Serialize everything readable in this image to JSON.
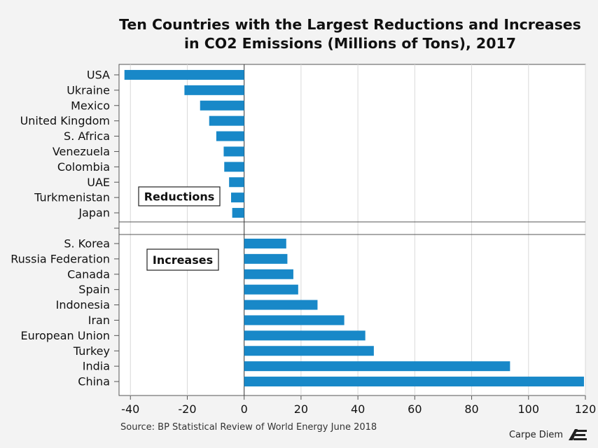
{
  "title_lines": [
    "Ten Countries with the Largest Reductions and Increases",
    "in CO2 Emissions (Millions of Tons), 2017"
  ],
  "source": "Source: BP Statistical Review of World Energy June 2018",
  "credit": "Carpe Diem",
  "logo_icon": "aei-logo-icon",
  "colors": {
    "bar": "#1888c8",
    "background": "#f3f3f3",
    "plot": "#ffffff",
    "grid": "#d9d9d9"
  },
  "chart_data": {
    "type": "bar",
    "orientation": "horizontal",
    "title": "Ten Countries with the Largest Reductions and Increases in CO2 Emissions (Millions of Tons), 2017",
    "xlim": [
      -44,
      120
    ],
    "xticks": [
      -40,
      -20,
      0,
      20,
      40,
      60,
      80,
      100,
      120
    ],
    "grid": "vertical",
    "groups": [
      {
        "label": "Reductions",
        "categories": [
          "USA",
          "Ukraine",
          "Mexico",
          "United Kingdom",
          "S. Africa",
          "Venezuela",
          "Colombia",
          "UAE",
          "Turkmenistan",
          "Japan"
        ],
        "values": [
          -42.1,
          -21.0,
          -15.5,
          -12.3,
          -9.8,
          -7.2,
          -7.0,
          -5.3,
          -4.6,
          -4.2
        ]
      },
      {
        "label": "Increases",
        "categories": [
          "S. Korea",
          "Russia Federation",
          "Canada",
          "Spain",
          "Indonesia",
          "Iran",
          "European Union",
          "Turkey",
          "India",
          "China"
        ],
        "values": [
          14.8,
          15.2,
          17.3,
          19.0,
          25.8,
          35.2,
          42.6,
          45.6,
          93.5,
          119.5
        ]
      }
    ]
  }
}
